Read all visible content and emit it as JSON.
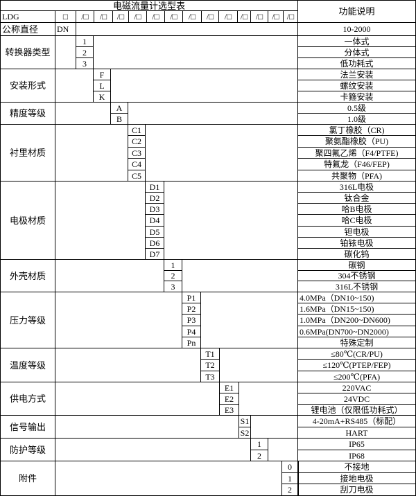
{
  "title": "电磁流量计选型表",
  "function_header": "功能说明",
  "model": {
    "prefix": "LDG",
    "first_slot": "□",
    "slot": "/□",
    "slot_count": 13
  },
  "nominal": {
    "label": "公称直径",
    "code": "DN",
    "desc": "10-2000"
  },
  "groups": [
    {
      "label": "转换器类型",
      "options": [
        {
          "code": "1",
          "desc": "一体式"
        },
        {
          "code": "2",
          "desc": "分体式"
        },
        {
          "code": "3",
          "desc": "低功耗式"
        }
      ]
    },
    {
      "label": "安装形式",
      "options": [
        {
          "code": "F",
          "desc": "法兰安装"
        },
        {
          "code": "L",
          "desc": "螺纹安装"
        },
        {
          "code": "K",
          "desc": "卡箍安装"
        }
      ]
    },
    {
      "label": "精度等级",
      "options": [
        {
          "code": "A",
          "desc": "0.5级"
        },
        {
          "code": "B",
          "desc": "1.0级"
        }
      ]
    },
    {
      "label": "衬里材质",
      "options": [
        {
          "code": "C1",
          "desc": "氯丁橡胶（CR)"
        },
        {
          "code": "C2",
          "desc": "聚氨酯橡胶（PU)"
        },
        {
          "code": "C3",
          "desc": "聚四氟乙烯（F4/PTFE)"
        },
        {
          "code": "C4",
          "desc": "特氟龙（F46/FEP)"
        },
        {
          "code": "C5",
          "desc": "共聚物（PFA)"
        }
      ]
    },
    {
      "label": "电极材质",
      "options": [
        {
          "code": "D1",
          "desc": "316L电极"
        },
        {
          "code": "D2",
          "desc": "钛合金"
        },
        {
          "code": "D3",
          "desc": "哈B电极"
        },
        {
          "code": "D4",
          "desc": "哈C电极"
        },
        {
          "code": "D5",
          "desc": "钽电极"
        },
        {
          "code": "D6",
          "desc": "铂铱电极"
        },
        {
          "code": "D7",
          "desc": "碳化钨"
        }
      ]
    },
    {
      "label": "外壳材质",
      "options": [
        {
          "code": "1",
          "desc": "碳钢"
        },
        {
          "code": "2",
          "desc": "304不锈钢"
        },
        {
          "code": "3",
          "desc": "316L不锈钢"
        }
      ]
    },
    {
      "label": "压力等级",
      "options": [
        {
          "code": "P1",
          "desc": "4.0MPa（DN10~150)"
        },
        {
          "code": "P2",
          "desc": "1.6MPa（DN15~150)"
        },
        {
          "code": "P3",
          "desc": "1.0MPa（DN200~DN600)"
        },
        {
          "code": "P4",
          "desc": "0.6MPa(DN700~DN2000)"
        },
        {
          "code": "Pn",
          "desc": "特殊定制"
        }
      ]
    },
    {
      "label": "温度等级",
      "options": [
        {
          "code": "T1",
          "desc": "≤80℃(CR/PU)"
        },
        {
          "code": "T2",
          "desc": "≤120℃(PTEP/FEP)"
        },
        {
          "code": "T3",
          "desc": "≤200℃(PFA)"
        }
      ]
    },
    {
      "label": "供电方式",
      "options": [
        {
          "code": "E1",
          "desc": "220VAC"
        },
        {
          "code": "E2",
          "desc": "24VDC"
        },
        {
          "code": "E3",
          "desc": "锂电池（仅限低功耗式）"
        }
      ]
    },
    {
      "label": "信号输出",
      "options": [
        {
          "code": "S1",
          "desc": "4-20mA+RS485（标配）"
        },
        {
          "code": "S2",
          "desc": "HART"
        }
      ]
    },
    {
      "label": "防护等级",
      "options": [
        {
          "code": "1",
          "desc": "IP65"
        },
        {
          "code": "2",
          "desc": "IP68"
        }
      ]
    },
    {
      "label": "附件",
      "options": [
        {
          "code": "0",
          "desc": "不接地"
        },
        {
          "code": "1",
          "desc": "接地电极"
        },
        {
          "code": "2",
          "desc": "刮刀电极"
        }
      ]
    }
  ]
}
